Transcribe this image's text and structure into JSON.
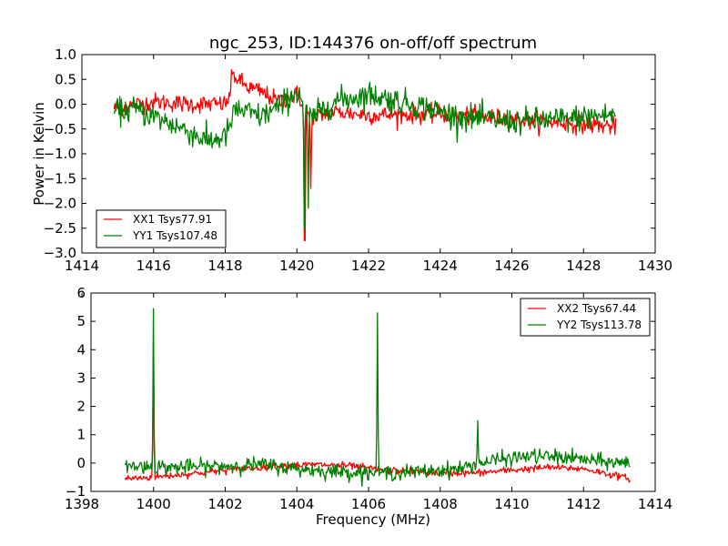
{
  "chart_data": [
    {
      "type": "line",
      "title": "ngc_253, ID:144376 on-off/off spectrum",
      "xlabel": "",
      "ylabel": "Power in Kelvin",
      "xlim": [
        1414,
        1430
      ],
      "ylim": [
        -3.0,
        1.0
      ],
      "xticks": [
        "1414",
        "1416",
        "1418",
        "1420",
        "1422",
        "1424",
        "1426",
        "1428",
        "1430"
      ],
      "xtick_values": [
        1414,
        1416,
        1418,
        1420,
        1422,
        1424,
        1426,
        1428,
        1430
      ],
      "yticks": [
        "1.0",
        "0.5",
        "0.0",
        "−0.5",
        "−1.0",
        "−1.5",
        "−2.0",
        "−2.5",
        "−3.0"
      ],
      "ytick_values": [
        1.0,
        0.5,
        0.0,
        -0.5,
        -1.0,
        -1.5,
        -2.0,
        -2.5,
        -3.0
      ],
      "legend_position": "lower-left",
      "grid": false,
      "series": [
        {
          "name": "XX1 Tsys77.91",
          "color": "#ff0000",
          "x_range": [
            1414.9,
            1428.9
          ],
          "noise": 0.09,
          "baseline": [
            [
              1414.9,
              -0.08
            ],
            [
              1416.0,
              0.05
            ],
            [
              1417.0,
              0.0
            ],
            [
              1418.0,
              0.0
            ],
            [
              1418.1,
              0.1
            ],
            [
              1418.2,
              0.6
            ],
            [
              1418.6,
              0.35
            ],
            [
              1419.0,
              0.25
            ],
            [
              1419.5,
              0.05
            ],
            [
              1420.0,
              0.2
            ],
            [
              1420.15,
              0.05
            ],
            [
              1420.4,
              -0.3
            ],
            [
              1421.0,
              -0.15
            ],
            [
              1422.0,
              -0.22
            ],
            [
              1424.0,
              -0.2
            ],
            [
              1426.0,
              -0.3
            ],
            [
              1428.9,
              -0.45
            ]
          ],
          "features": [
            [
              1420.22,
              -2.75
            ],
            [
              1420.38,
              -1.7
            ]
          ]
        },
        {
          "name": "YY1 Tsys107.48",
          "color": "#008000",
          "x_range": [
            1414.9,
            1428.9
          ],
          "noise": 0.13,
          "baseline": [
            [
              1414.9,
              -0.15
            ],
            [
              1415.5,
              -0.1
            ],
            [
              1416.0,
              -0.25
            ],
            [
              1417.0,
              -0.55
            ],
            [
              1417.5,
              -0.75
            ],
            [
              1418.0,
              -0.65
            ],
            [
              1418.1,
              -0.5
            ],
            [
              1418.3,
              -0.1
            ],
            [
              1419.0,
              -0.25
            ],
            [
              1419.5,
              -0.05
            ],
            [
              1420.0,
              0.25
            ],
            [
              1420.15,
              0.1
            ],
            [
              1420.4,
              -0.3
            ],
            [
              1421.0,
              0.05
            ],
            [
              1422.0,
              0.2
            ],
            [
              1423.5,
              -0.05
            ],
            [
              1424.5,
              -0.25
            ],
            [
              1426.0,
              -0.35
            ],
            [
              1427.5,
              -0.3
            ],
            [
              1428.9,
              -0.2
            ]
          ],
          "features": [
            [
              1420.2,
              -2.5
            ],
            [
              1420.32,
              -2.1
            ]
          ]
        }
      ]
    },
    {
      "type": "line",
      "title": "",
      "xlabel": "Frequency (MHz)",
      "ylabel": "",
      "xlim": [
        1398,
        1414
      ],
      "ylim": [
        -1,
        6
      ],
      "xticks": [
        "1398",
        "1400",
        "1402",
        "1404",
        "1406",
        "1408",
        "1410",
        "1412",
        "1414"
      ],
      "xtick_values": [
        1398,
        1400,
        1402,
        1404,
        1406,
        1408,
        1410,
        1412,
        1414
      ],
      "yticks": [
        "6",
        "5",
        "4",
        "3",
        "2",
        "1",
        "0",
        "−1"
      ],
      "ytick_values": [
        6,
        5,
        4,
        3,
        2,
        1,
        0,
        -1
      ],
      "legend_position": "upper-right",
      "grid": false,
      "series": [
        {
          "name": "XX2 Tsys67.44",
          "color": "#ff0000",
          "x_range": [
            1399.2,
            1413.3
          ],
          "noise": 0.06,
          "baseline": [
            [
              1399.2,
              -0.55
            ],
            [
              1400.0,
              -0.5
            ],
            [
              1401.0,
              -0.38
            ],
            [
              1402.0,
              -0.25
            ],
            [
              1403.5,
              -0.1
            ],
            [
              1404.5,
              -0.05
            ],
            [
              1405.5,
              -0.1
            ],
            [
              1406.5,
              -0.25
            ],
            [
              1408.0,
              -0.35
            ],
            [
              1409.0,
              -0.35
            ],
            [
              1410.0,
              -0.25
            ],
            [
              1411.0,
              -0.15
            ],
            [
              1412.0,
              -0.2
            ],
            [
              1413.3,
              -0.55
            ]
          ],
          "features": [
            [
              1400.0,
              4.3
            ]
          ]
        },
        {
          "name": "YY2 Tsys113.78",
          "color": "#008000",
          "x_range": [
            1399.2,
            1413.3
          ],
          "noise": 0.13,
          "baseline": [
            [
              1399.2,
              -0.1
            ],
            [
              1400.5,
              -0.15
            ],
            [
              1402.0,
              -0.1
            ],
            [
              1403.0,
              -0.05
            ],
            [
              1404.0,
              -0.2
            ],
            [
              1405.0,
              -0.3
            ],
            [
              1406.5,
              -0.35
            ],
            [
              1407.5,
              -0.3
            ],
            [
              1408.5,
              -0.2
            ],
            [
              1409.5,
              0.1
            ],
            [
              1410.5,
              0.25
            ],
            [
              1411.5,
              0.2
            ],
            [
              1412.5,
              0.05
            ],
            [
              1413.3,
              0.0
            ]
          ],
          "features": [
            [
              1400.0,
              5.45
            ],
            [
              1406.25,
              5.3
            ],
            [
              1409.05,
              1.5
            ]
          ]
        }
      ]
    }
  ]
}
